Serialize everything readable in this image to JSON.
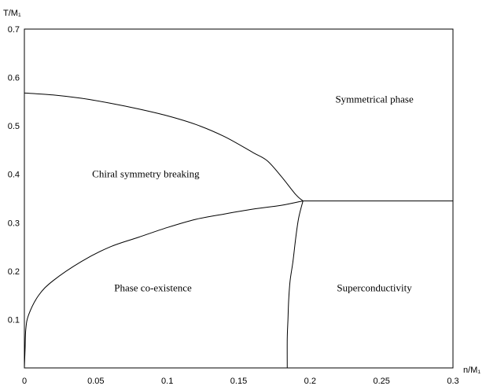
{
  "chart_data": {
    "type": "line",
    "xlabel": "n/M₁",
    "ylabel": "T/M₁",
    "xlim": [
      0,
      0.3
    ],
    "ylim": [
      0,
      0.7
    ],
    "x_ticks": [
      "0",
      "0.05",
      "0.1",
      "0.15",
      "0.2",
      "0.25",
      "0.3"
    ],
    "y_ticks": [
      "0.1",
      "0.2",
      "0.3",
      "0.4",
      "0.5",
      "0.6",
      "0.7"
    ],
    "grid": false,
    "legend": "none",
    "series": [
      {
        "values": [
          [
            0.0,
            0.568
          ],
          [
            0.02,
            0.564
          ],
          [
            0.04,
            0.557
          ],
          [
            0.06,
            0.547
          ],
          [
            0.08,
            0.535
          ],
          [
            0.1,
            0.521
          ],
          [
            0.12,
            0.503
          ],
          [
            0.14,
            0.478
          ],
          [
            0.16,
            0.445
          ],
          [
            0.17,
            0.428
          ],
          [
            0.18,
            0.395
          ],
          [
            0.19,
            0.358
          ],
          [
            0.195,
            0.345
          ]
        ]
      },
      {
        "values": [
          [
            0.0,
            0.0
          ],
          [
            0.0005,
            0.04
          ],
          [
            0.001,
            0.08
          ],
          [
            0.003,
            0.11
          ],
          [
            0.01,
            0.15
          ],
          [
            0.02,
            0.18
          ],
          [
            0.04,
            0.22
          ],
          [
            0.06,
            0.25
          ],
          [
            0.08,
            0.27
          ],
          [
            0.1,
            0.29
          ],
          [
            0.12,
            0.307
          ],
          [
            0.14,
            0.318
          ],
          [
            0.16,
            0.328
          ],
          [
            0.18,
            0.336
          ],
          [
            0.195,
            0.345
          ]
        ]
      },
      {
        "values": [
          [
            0.184,
            0.0
          ],
          [
            0.184,
            0.06
          ],
          [
            0.1845,
            0.1
          ],
          [
            0.185,
            0.14
          ],
          [
            0.186,
            0.18
          ],
          [
            0.188,
            0.22
          ],
          [
            0.19,
            0.27
          ],
          [
            0.192,
            0.31
          ],
          [
            0.195,
            0.345
          ]
        ]
      },
      {
        "values": [
          [
            0.195,
            0.345
          ],
          [
            0.3,
            0.345
          ]
        ]
      }
    ],
    "annotations": [
      {
        "text": "Symmetrical phase",
        "x": 0.245,
        "y": 0.555
      },
      {
        "text": "Chiral symmetry breaking",
        "x": 0.085,
        "y": 0.4
      },
      {
        "text": "Phase co-existence",
        "x": 0.09,
        "y": 0.165
      },
      {
        "text": "Superconductivity",
        "x": 0.245,
        "y": 0.165
      }
    ]
  }
}
